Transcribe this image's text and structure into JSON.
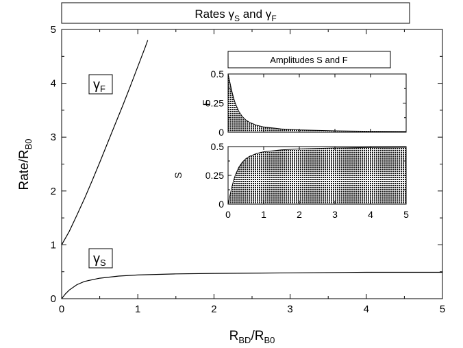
{
  "chart_data": [
    {
      "type": "line",
      "title": "Rates γS and γF",
      "title_parts": {
        "prefix": "Rates γ",
        "sub1": "S",
        "mid": " and γ",
        "sub2": "F"
      },
      "xlabel": "RBD/RB0",
      "xlabel_parts": {
        "a": "R",
        "a_sub": "BD",
        "sep": "/R",
        "b_sub": "B0"
      },
      "ylabel": "Rate/RB0",
      "ylabel_parts": {
        "a": "Rate/R",
        "a_sub": "B0"
      },
      "xlim": [
        0,
        5
      ],
      "ylim": [
        0,
        5
      ],
      "x_ticks": [
        "0",
        "1",
        "2",
        "3",
        "4",
        "5"
      ],
      "y_ticks": [
        "0",
        "1",
        "2",
        "3",
        "4",
        "5"
      ],
      "grid": false,
      "series": [
        {
          "name": "γF",
          "name_parts": {
            "sym": "γ",
            "sub": "F"
          },
          "x": [
            0,
            0.1,
            0.2,
            0.3,
            0.4,
            0.5,
            0.6,
            0.7,
            0.8,
            0.9,
            1.0,
            1.1,
            1.13
          ],
          "y": [
            1.0,
            1.25,
            1.55,
            1.86,
            2.19,
            2.53,
            2.88,
            3.23,
            3.58,
            3.94,
            4.31,
            4.68,
            4.8
          ]
        },
        {
          "name": "γS",
          "name_parts": {
            "sym": "γ",
            "sub": "S"
          },
          "x": [
            0,
            0.05,
            0.1,
            0.2,
            0.3,
            0.5,
            0.75,
            1.0,
            1.5,
            2.0,
            3.0,
            4.0,
            5.0
          ],
          "y": [
            0,
            0.09,
            0.16,
            0.26,
            0.32,
            0.38,
            0.42,
            0.44,
            0.46,
            0.47,
            0.48,
            0.49,
            0.49
          ]
        }
      ]
    },
    {
      "type": "area",
      "title": "Amplitudes S and F",
      "panels": [
        {
          "ylabel": "F",
          "xlim": [
            0,
            5
          ],
          "ylim": [
            0,
            0.5
          ],
          "y_ticks": [
            "0",
            "0.25",
            "0.5"
          ],
          "x": [
            0,
            0.05,
            0.1,
            0.15,
            0.2,
            0.3,
            0.4,
            0.5,
            0.6,
            0.8,
            1.0,
            1.5,
            2.0,
            3.0,
            4.0,
            5.0
          ],
          "y": [
            0.5,
            0.43,
            0.36,
            0.3,
            0.25,
            0.18,
            0.135,
            0.105,
            0.085,
            0.06,
            0.045,
            0.028,
            0.02,
            0.012,
            0.008,
            0.006
          ]
        },
        {
          "ylabel": "S",
          "xlim": [
            0,
            5
          ],
          "ylim": [
            0,
            0.5
          ],
          "y_ticks": [
            "0",
            "0.25",
            "0.5"
          ],
          "x_ticks": [
            "0",
            "1",
            "2",
            "3",
            "4",
            "5"
          ],
          "x": [
            0,
            0.05,
            0.1,
            0.15,
            0.2,
            0.3,
            0.4,
            0.5,
            0.6,
            0.8,
            1.0,
            1.5,
            2.0,
            3.0,
            4.0,
            5.0
          ],
          "y": [
            0,
            0.07,
            0.14,
            0.2,
            0.25,
            0.32,
            0.365,
            0.395,
            0.415,
            0.44,
            0.455,
            0.472,
            0.48,
            0.488,
            0.492,
            0.494
          ]
        }
      ]
    }
  ]
}
